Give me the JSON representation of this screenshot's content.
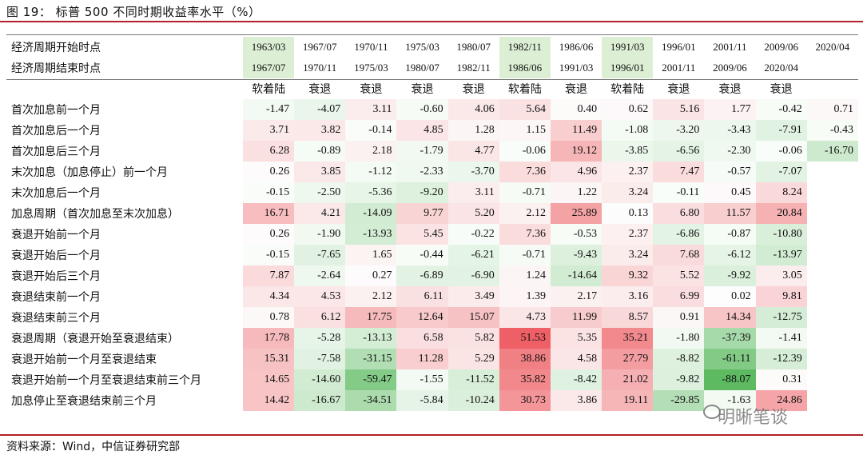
{
  "title": "图 19：  标普 500 不同时期收益率水平（%）",
  "source": "资料来源：Wind，中信证券研究部",
  "watermark": "明晰笔谈",
  "header": {
    "start_label": "经济周期开始时点",
    "end_label": "经济周期结束时点",
    "starts": [
      "1963/03",
      "1967/07",
      "1970/11",
      "1975/03",
      "1980/07",
      "1982/11",
      "1986/06",
      "1991/03",
      "1996/01",
      "2001/11",
      "2009/06",
      "2020/04"
    ],
    "ends": [
      "1967/07",
      "1970/11",
      "1975/03",
      "1980/07",
      "1982/11",
      "1986/06",
      "1991/03",
      "1996/01",
      "2001/11",
      "2009/06",
      "2020/04",
      ""
    ],
    "types": [
      "软着陆",
      "衰退",
      "衰退",
      "衰退",
      "衰退",
      "软着陆",
      "衰退",
      "软着陆",
      "衰退",
      "衰退",
      "衰退",
      ""
    ],
    "soft_landing_color": "#dcefd4"
  },
  "rows": [
    {
      "label": "首次加息前一个月",
      "values": [
        "-1.47",
        "-4.07",
        "3.11",
        "-0.60",
        "4.06",
        "5.64",
        "0.40",
        "0.62",
        "5.16",
        "1.77",
        "-0.42",
        "0.71"
      ]
    },
    {
      "label": "首次加息后一个月",
      "values": [
        "3.71",
        "3.82",
        "-0.14",
        "4.85",
        "1.28",
        "1.15",
        "11.49",
        "-1.08",
        "-3.20",
        "-3.43",
        "-7.91",
        "-0.43"
      ]
    },
    {
      "label": "首次加息后三个月",
      "values": [
        "6.28",
        "-0.89",
        "2.18",
        "-1.79",
        "4.77",
        "-0.06",
        "19.12",
        "-3.85",
        "-6.56",
        "-2.30",
        "-0.06",
        "-16.70"
      ]
    },
    {
      "label": "末次加息（加息停止）前一个月",
      "values": [
        "0.26",
        "3.85",
        "-1.12",
        "-2.33",
        "-3.70",
        "7.36",
        "4.96",
        "2.37",
        "7.47",
        "-0.57",
        "-7.07",
        ""
      ]
    },
    {
      "label": "末次加息后一个月",
      "values": [
        "-0.15",
        "-2.50",
        "-5.36",
        "-9.20",
        "3.11",
        "-0.71",
        "1.22",
        "3.24",
        "-0.11",
        "0.45",
        "8.24",
        ""
      ]
    },
    {
      "label": "加息周期（首次加息至末次加息）",
      "values": [
        "16.71",
        "4.21",
        "-14.09",
        "9.77",
        "5.20",
        "2.12",
        "25.89",
        "0.13",
        "6.80",
        "11.57",
        "20.84",
        ""
      ]
    },
    {
      "label": "衰退开始前一个月",
      "values": [
        "0.26",
        "-1.90",
        "-13.93",
        "5.45",
        "-0.22",
        "7.36",
        "-0.53",
        "2.37",
        "-6.86",
        "-0.87",
        "-10.80",
        ""
      ]
    },
    {
      "label": "衰退开始后一个月",
      "values": [
        "-0.15",
        "-7.65",
        "1.65",
        "-0.44",
        "-6.21",
        "-0.71",
        "-9.43",
        "3.24",
        "7.68",
        "-6.12",
        "-13.97",
        ""
      ]
    },
    {
      "label": "衰退开始后三个月",
      "values": [
        "7.87",
        "-2.64",
        "0.27",
        "-6.89",
        "-6.90",
        "1.24",
        "-14.64",
        "9.32",
        "5.52",
        "-9.92",
        "3.05",
        ""
      ]
    },
    {
      "label": "衰退结束前一个月",
      "values": [
        "4.34",
        "4.53",
        "2.12",
        "6.11",
        "3.49",
        "1.39",
        "2.17",
        "3.16",
        "6.99",
        "0.02",
        "9.81",
        ""
      ]
    },
    {
      "label": "衰退结束前三个月",
      "values": [
        "0.78",
        "6.12",
        "17.75",
        "12.64",
        "15.07",
        "4.73",
        "11.99",
        "8.57",
        "0.91",
        "14.34",
        "-12.75",
        ""
      ]
    },
    {
      "label": "衰退周期（衰退开始至衰退结束）",
      "values": [
        "17.78",
        "-5.28",
        "-13.13",
        "6.58",
        "5.82",
        "51.53",
        "5.35",
        "35.21",
        "-1.80",
        "-37.39",
        "-1.41",
        ""
      ]
    },
    {
      "label": "衰退开始前一个月至衰退结束",
      "values": [
        "15.31",
        "-7.58",
        "-31.15",
        "11.28",
        "5.29",
        "38.86",
        "4.58",
        "27.79",
        "-8.82",
        "-61.11",
        "-12.39",
        ""
      ]
    },
    {
      "label": "衰退开始前一个月至衰退结束前三个月",
      "values": [
        "14.65",
        "-14.60",
        "-59.47",
        "-1.55",
        "-11.52",
        "35.82",
        "-8.42",
        "21.02",
        "-9.82",
        "-88.07",
        "0.31",
        ""
      ]
    },
    {
      "label": "加息停止至衰退结束前三个月",
      "values": [
        "14.42",
        "-16.67",
        "-34.51",
        "-5.84",
        "-10.24",
        "30.73",
        "3.86",
        "19.11",
        "-29.85",
        "-1.63",
        "24.86",
        ""
      ]
    }
  ]
}
